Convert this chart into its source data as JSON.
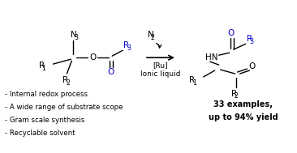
{
  "background_color": "#ffffff",
  "fig_width": 3.66,
  "fig_height": 1.89,
  "dpi": 100,
  "black": "#000000",
  "blue": "#0000cc",
  "bullet_points": [
    "- Internal redox process",
    "- A wide range of substrate scope",
    "- Gram scale synthesis",
    "- Recyclable solvent"
  ],
  "result_line1": "33 examples,",
  "result_line2": "up to 94% yield"
}
